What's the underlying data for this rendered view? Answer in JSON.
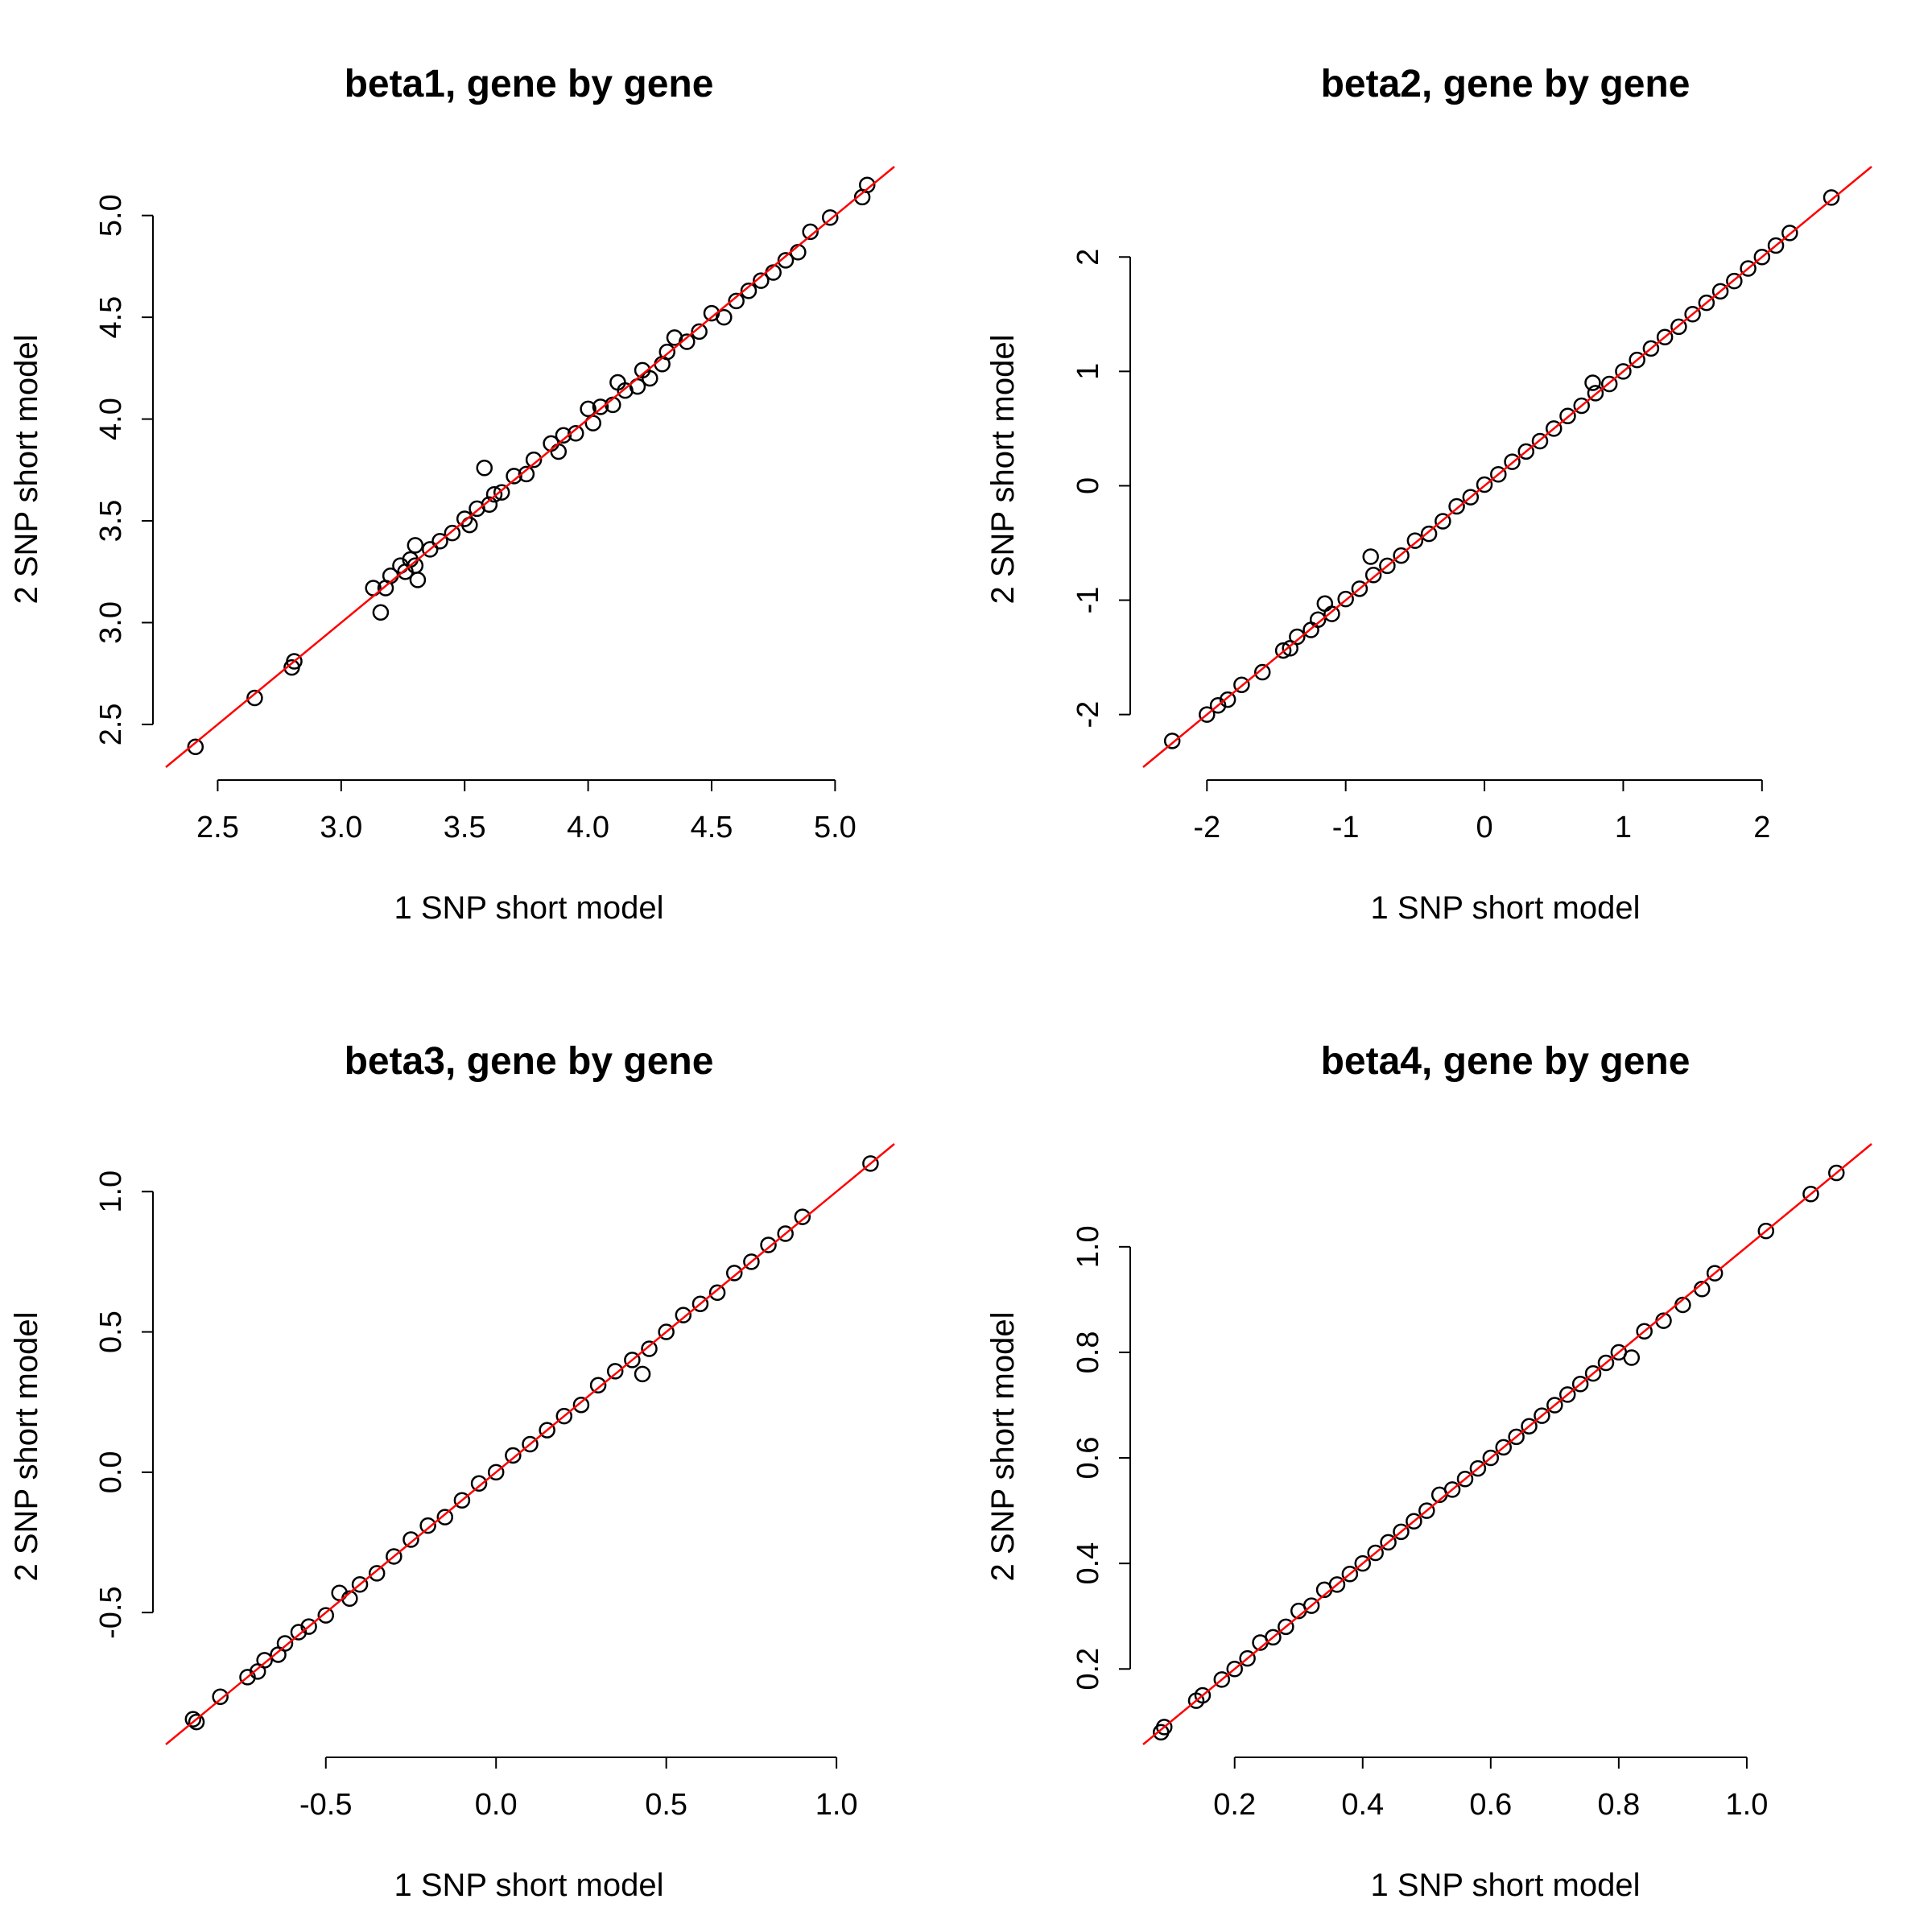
{
  "chart_data": [
    {
      "type": "scatter",
      "title": "beta1, gene by gene",
      "xlabel": "1 SNP short model",
      "ylabel": "2 SNP short model",
      "xticks": [
        "2.5",
        "3.0",
        "3.5",
        "4.0",
        "4.5",
        "5.0"
      ],
      "yticks": [
        "2.5",
        "3.0",
        "3.5",
        "4.0",
        "4.5",
        "5.0"
      ],
      "xlim": [
        2.29,
        5.24
      ],
      "ylim": [
        2.29,
        5.24
      ],
      "reference_line": {
        "intercept": 0,
        "slope": 1,
        "color": "#ff0000"
      },
      "x": [
        2.41,
        2.65,
        2.8,
        2.81,
        3.13,
        3.16,
        3.2,
        3.18,
        3.24,
        3.26,
        3.28,
        3.3,
        3.31,
        3.3,
        3.36,
        3.4,
        3.45,
        3.5,
        3.52,
        3.55,
        3.6,
        3.62,
        3.58,
        3.65,
        3.7,
        3.75,
        3.78,
        3.85,
        3.9,
        3.88,
        3.95,
        4.0,
        4.02,
        4.05,
        4.1,
        4.12,
        4.15,
        4.2,
        4.22,
        4.25,
        4.3,
        4.32,
        4.35,
        4.4,
        4.45,
        4.5,
        4.55,
        4.6,
        4.65,
        4.7,
        4.75,
        4.8,
        4.85,
        4.9,
        4.98,
        5.11,
        5.13
      ],
      "y": [
        2.39,
        2.63,
        2.78,
        2.81,
        3.17,
        3.05,
        3.23,
        3.17,
        3.28,
        3.25,
        3.31,
        3.38,
        3.21,
        3.28,
        3.36,
        3.4,
        3.44,
        3.51,
        3.48,
        3.56,
        3.58,
        3.63,
        3.76,
        3.64,
        3.72,
        3.73,
        3.8,
        3.88,
        3.92,
        3.84,
        3.93,
        4.05,
        3.98,
        4.06,
        4.07,
        4.18,
        4.14,
        4.16,
        4.24,
        4.2,
        4.27,
        4.33,
        4.4,
        4.38,
        4.43,
        4.52,
        4.5,
        4.58,
        4.63,
        4.68,
        4.72,
        4.78,
        4.82,
        4.92,
        4.99,
        5.09,
        5.15
      ]
    },
    {
      "type": "scatter",
      "title": "beta2, gene by gene",
      "xlabel": "1 SNP short model",
      "ylabel": "2 SNP short model",
      "xticks": [
        "-2",
        "-1",
        "0",
        "1",
        "2"
      ],
      "yticks": [
        "-2",
        "-1",
        "0",
        "1",
        "2"
      ],
      "xlim": [
        -2.46,
        2.79
      ],
      "ylim": [
        -2.46,
        2.79
      ],
      "reference_line": {
        "intercept": 0,
        "slope": 1,
        "color": "#ff0000"
      },
      "x": [
        -2.25,
        -2.0,
        -1.92,
        -1.85,
        -1.75,
        -1.6,
        -1.45,
        -1.4,
        -1.35,
        -1.25,
        -1.2,
        -1.15,
        -1.1,
        -1.0,
        -0.9,
        -0.8,
        -0.82,
        -0.7,
        -0.6,
        -0.5,
        -0.4,
        -0.3,
        -0.2,
        -0.1,
        0.0,
        0.1,
        0.2,
        0.3,
        0.4,
        0.5,
        0.6,
        0.7,
        0.78,
        0.8,
        0.9,
        1.0,
        1.1,
        1.2,
        1.3,
        1.4,
        1.5,
        1.6,
        1.7,
        1.8,
        1.9,
        2.0,
        2.1,
        2.2,
        2.5
      ],
      "y": [
        -2.23,
        -2.0,
        -1.92,
        -1.87,
        -1.74,
        -1.63,
        -1.44,
        -1.42,
        -1.32,
        -1.26,
        -1.17,
        -1.03,
        -1.12,
        -0.99,
        -0.9,
        -0.78,
        -0.62,
        -0.7,
        -0.61,
        -0.48,
        -0.42,
        -0.31,
        -0.18,
        -0.1,
        0.01,
        0.1,
        0.21,
        0.3,
        0.39,
        0.5,
        0.61,
        0.7,
        0.9,
        0.81,
        0.89,
        1.0,
        1.1,
        1.2,
        1.3,
        1.39,
        1.5,
        1.6,
        1.7,
        1.79,
        1.9,
        2.0,
        2.1,
        2.21,
        2.52
      ]
    },
    {
      "type": "scatter",
      "title": "beta3, gene by gene",
      "xlabel": "1 SNP short model",
      "ylabel": "2 SNP short model",
      "xticks": [
        "-0.5",
        "0.0",
        "0.5",
        "1.0"
      ],
      "yticks": [
        "-0.5",
        "0.0",
        "0.5",
        "1.0"
      ],
      "xlim": [
        -0.97,
        1.17
      ],
      "ylim": [
        -0.97,
        1.17
      ],
      "reference_line": {
        "intercept": 0,
        "slope": 1,
        "color": "#ff0000"
      },
      "x": [
        -0.89,
        -0.88,
        -0.81,
        -0.73,
        -0.7,
        -0.68,
        -0.64,
        -0.62,
        -0.58,
        -0.55,
        -0.5,
        -0.46,
        -0.43,
        -0.4,
        -0.35,
        -0.3,
        -0.25,
        -0.2,
        -0.15,
        -0.1,
        -0.05,
        0.0,
        0.05,
        0.1,
        0.15,
        0.2,
        0.25,
        0.3,
        0.35,
        0.4,
        0.43,
        0.45,
        0.5,
        0.55,
        0.6,
        0.65,
        0.7,
        0.75,
        0.8,
        0.85,
        0.9,
        1.1
      ],
      "y": [
        -0.88,
        -0.89,
        -0.8,
        -0.73,
        -0.71,
        -0.67,
        -0.65,
        -0.61,
        -0.57,
        -0.55,
        -0.51,
        -0.43,
        -0.45,
        -0.4,
        -0.36,
        -0.3,
        -0.24,
        -0.19,
        -0.16,
        -0.1,
        -0.04,
        0.0,
        0.06,
        0.1,
        0.15,
        0.2,
        0.24,
        0.31,
        0.36,
        0.4,
        0.35,
        0.44,
        0.5,
        0.56,
        0.6,
        0.64,
        0.71,
        0.75,
        0.81,
        0.85,
        0.91,
        1.1
      ]
    },
    {
      "type": "scatter",
      "title": "beta4, gene by gene",
      "xlabel": "1 SNP short model",
      "ylabel": "2 SNP short model",
      "xticks": [
        "0.2",
        "0.4",
        "0.6",
        "0.8",
        "1.0"
      ],
      "yticks": [
        "0.2",
        "0.4",
        "0.6",
        "0.8",
        "1.0"
      ],
      "xlim": [
        0.057,
        1.195
      ],
      "ylim": [
        0.057,
        1.195
      ],
      "reference_line": {
        "intercept": 0,
        "slope": 1,
        "color": "#ff0000"
      },
      "x": [
        0.085,
        0.09,
        0.14,
        0.15,
        0.18,
        0.2,
        0.22,
        0.24,
        0.26,
        0.28,
        0.3,
        0.32,
        0.34,
        0.36,
        0.38,
        0.4,
        0.42,
        0.44,
        0.46,
        0.48,
        0.5,
        0.52,
        0.54,
        0.56,
        0.58,
        0.6,
        0.62,
        0.64,
        0.66,
        0.68,
        0.7,
        0.72,
        0.74,
        0.76,
        0.78,
        0.8,
        0.82,
        0.84,
        0.87,
        0.9,
        0.93,
        0.95,
        1.03,
        1.1,
        1.14
      ],
      "y": [
        0.08,
        0.09,
        0.14,
        0.15,
        0.18,
        0.2,
        0.22,
        0.25,
        0.26,
        0.28,
        0.31,
        0.32,
        0.35,
        0.36,
        0.38,
        0.4,
        0.42,
        0.44,
        0.46,
        0.48,
        0.5,
        0.53,
        0.54,
        0.56,
        0.58,
        0.6,
        0.62,
        0.64,
        0.66,
        0.68,
        0.7,
        0.72,
        0.74,
        0.76,
        0.78,
        0.8,
        0.79,
        0.84,
        0.86,
        0.89,
        0.92,
        0.95,
        1.03,
        1.1,
        1.14
      ]
    }
  ]
}
